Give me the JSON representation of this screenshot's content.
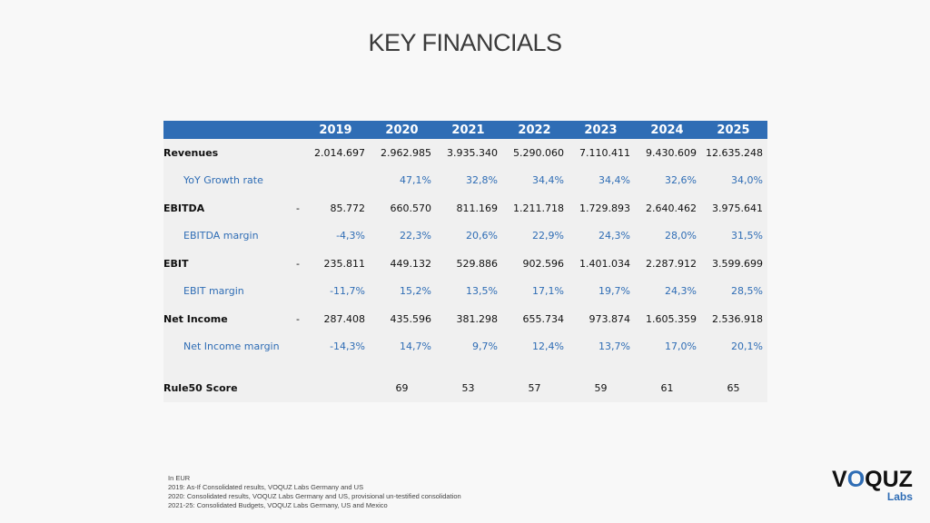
{
  "title": "KEY FINANCIALS",
  "table": {
    "years": [
      "2019",
      "2020",
      "2021",
      "2022",
      "2023",
      "2024",
      "2025"
    ],
    "rows": [
      {
        "label": "Revenues",
        "type": "main",
        "neg2019": false,
        "values": [
          "2.014.697",
          "2.962.985",
          "3.935.340",
          "5.290.060",
          "7.110.411",
          "9.430.609",
          "12.635.248"
        ]
      },
      {
        "label": "YoY Growth rate",
        "type": "sub",
        "neg2019": false,
        "values": [
          "",
          "47,1%",
          "32,8%",
          "34,4%",
          "34,4%",
          "32,6%",
          "34,0%"
        ]
      },
      {
        "label": "EBITDA",
        "type": "main",
        "neg2019": true,
        "dash": "-",
        "values": [
          "85.772",
          "660.570",
          "811.169",
          "1.211.718",
          "1.729.893",
          "2.640.462",
          "3.975.641"
        ]
      },
      {
        "label": "EBITDA margin",
        "type": "sub",
        "neg2019": false,
        "values": [
          "-4,3%",
          "22,3%",
          "20,6%",
          "22,9%",
          "24,3%",
          "28,0%",
          "31,5%"
        ]
      },
      {
        "label": "EBIT",
        "type": "main",
        "neg2019": true,
        "dash": "-",
        "values": [
          "235.811",
          "449.132",
          "529.886",
          "902.596",
          "1.401.034",
          "2.287.912",
          "3.599.699"
        ]
      },
      {
        "label": "EBIT margin",
        "type": "sub",
        "neg2019": false,
        "values": [
          "-11,7%",
          "15,2%",
          "13,5%",
          "17,1%",
          "19,7%",
          "24,3%",
          "28,5%"
        ]
      },
      {
        "label": "Net Income",
        "type": "main",
        "neg2019": true,
        "dash": "-",
        "values": [
          "287.408",
          "435.596",
          "381.298",
          "655.734",
          "973.874",
          "1.605.359",
          "2.536.918"
        ]
      },
      {
        "label": "Net Income margin",
        "type": "sub",
        "neg2019": false,
        "values": [
          "-14,3%",
          "14,7%",
          "9,7%",
          "12,4%",
          "13,7%",
          "17,0%",
          "20,1%"
        ]
      }
    ],
    "score": {
      "label": "Rule50 Score",
      "values": [
        "",
        "69",
        "53",
        "57",
        "59",
        "61",
        "65"
      ]
    }
  },
  "notes": [
    "In EUR",
    "2019: As-If Consolidated results, VOQUZ Labs Germany and US",
    "2020: Consolidated results, VOQUZ Labs Germany and US, provisional un-testified consolidation",
    "2021-25: Consolidated Budgets, VOQUZ Labs Germany, US and Mexico"
  ],
  "logo": {
    "name": "VOQUZ",
    "sub": "Labs"
  },
  "colors": {
    "header": "#2f6db5",
    "accent": "#2f6db5"
  }
}
